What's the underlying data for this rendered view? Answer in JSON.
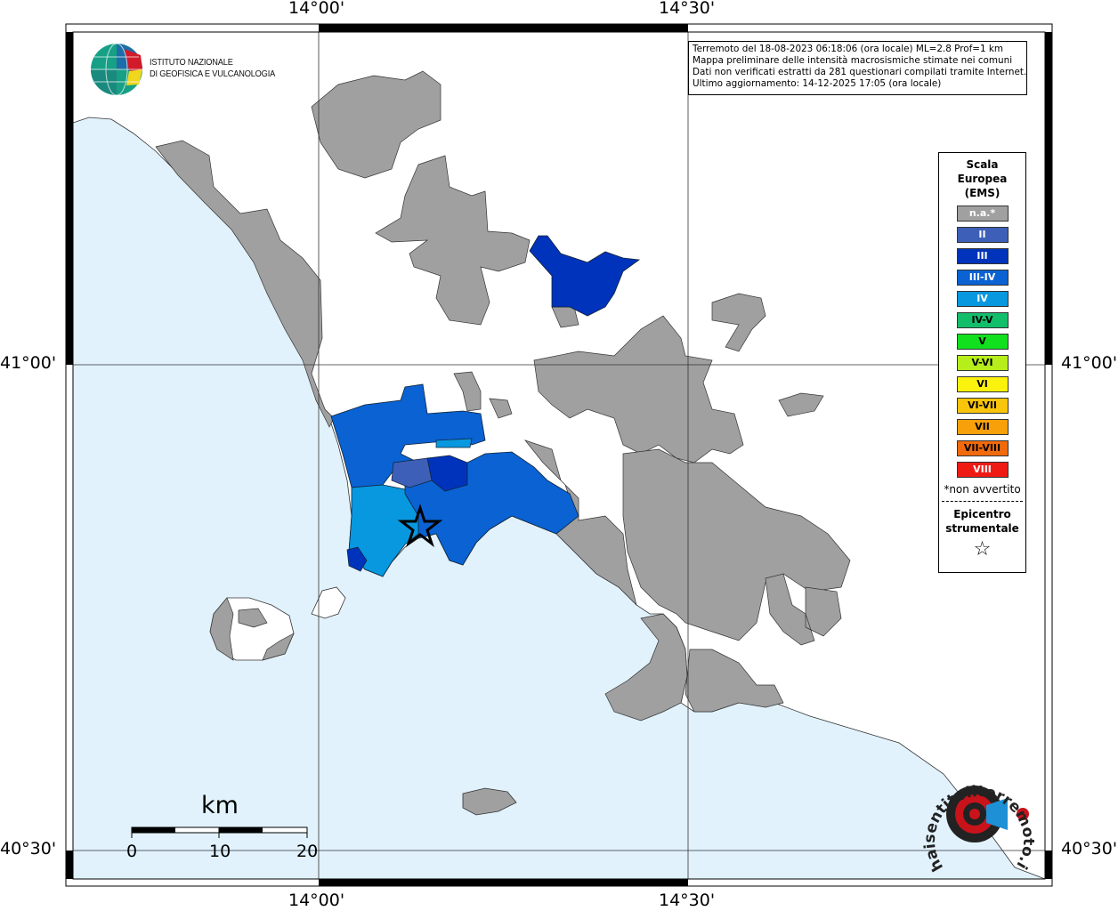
{
  "map": {
    "frame_labels": {
      "top_left_lon": "14°00'",
      "top_right_lon": "14°30'",
      "bottom_left_lon": "14°00'",
      "bottom_right_lon": "14°30'",
      "left_top_lat": "41°00'",
      "left_bottom_lat": "40°30'",
      "right_top_lat": "41°00'",
      "right_bottom_lat": "40°30'"
    },
    "sea_color": "#e1f2fd",
    "land_color": "#ffffff",
    "no_data_color": "#a0a0a0"
  },
  "info_box": {
    "line1": "Terremoto del 18-08-2023 06:18:06 (ora locale) ML=2.8 Prof=1 km",
    "line2": "Mappa preliminare delle intensità macrosismiche stimate nei comuni",
    "line3": "Dati non verificati estratti da 281 questionari compilati tramite Internet.",
    "line4": "Ultimo aggiornamento: 14-12-2025 17:05 (ora locale)"
  },
  "logo": {
    "line1": "ISTITUTO NAZIONALE",
    "line2": "DI GEOFISICA E VULCANOLOGIA",
    "icon": "ingv-globe-icon"
  },
  "legend": {
    "title_line1": "Scala",
    "title_line2": "Europea",
    "title_line3": "(EMS)",
    "items": [
      {
        "label": "n.a.*",
        "color": "#a0a0a0"
      },
      {
        "label": "II",
        "color": "#3e5fb7"
      },
      {
        "label": "III",
        "color": "#0033bb"
      },
      {
        "label": "III-IV",
        "color": "#0a62d3"
      },
      {
        "label": "IV",
        "color": "#0898e0"
      },
      {
        "label": "IV-V",
        "color": "#13be6b"
      },
      {
        "label": "V",
        "color": "#11e01f"
      },
      {
        "label": "V-VI",
        "color": "#b5ee1a"
      },
      {
        "label": "VI",
        "color": "#fbf20d"
      },
      {
        "label": "VI-VII",
        "color": "#f8c50c"
      },
      {
        "label": "VII",
        "color": "#f8a00a"
      },
      {
        "label": "VII-VIII",
        "color": "#f16a0c"
      },
      {
        "label": "VIII",
        "color": "#f01a14"
      }
    ],
    "note": "*non avvertito",
    "epicenter_line1": "Epicentro",
    "epicenter_line2": "strumentale",
    "epicenter_symbol": "☆"
  },
  "scale_bar": {
    "unit": "km",
    "ticks": [
      "0",
      "10",
      "20"
    ]
  },
  "watermark": {
    "text": "haisentitoilterremoto.it",
    "icon": "hsit-target-icon"
  }
}
